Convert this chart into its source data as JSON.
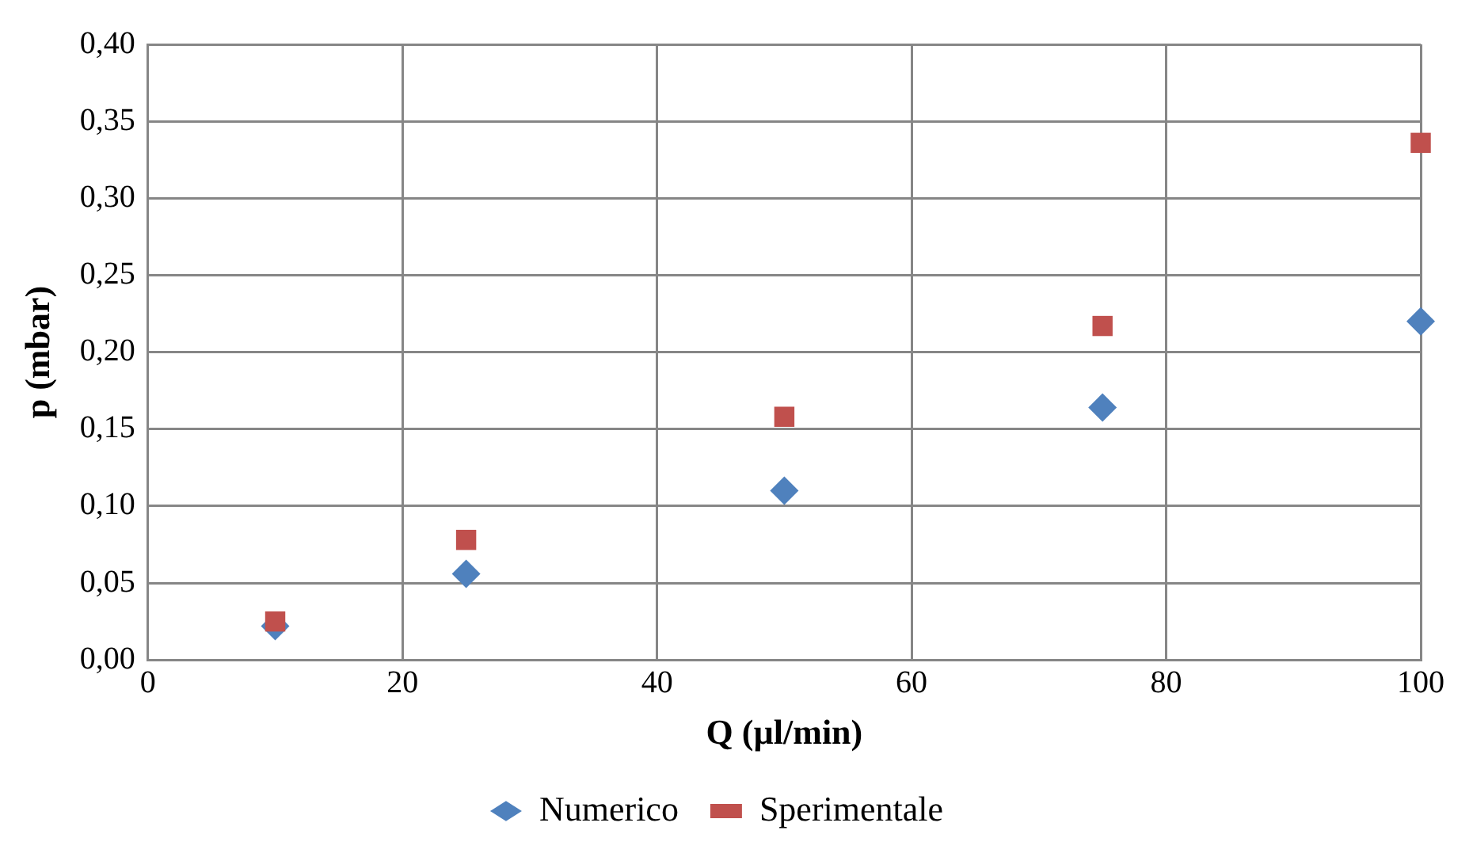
{
  "chart_data": {
    "type": "scatter",
    "xlabel": "Q (µl/min)",
    "ylabel": "p (mbar)",
    "xlim": [
      0,
      100
    ],
    "xticks": [
      0,
      20,
      40,
      60,
      80,
      100
    ],
    "ylim": [
      0,
      0.4
    ],
    "yticks": [
      {
        "value": 0,
        "label": "0,00"
      },
      {
        "value": 0.05,
        "label": "0,05"
      },
      {
        "value": 0.1,
        "label": "0,10"
      },
      {
        "value": 0.15,
        "label": "0,15"
      },
      {
        "value": 0.2,
        "label": "0,20"
      },
      {
        "value": 0.25,
        "label": "0,25"
      },
      {
        "value": 0.3,
        "label": "0,30"
      },
      {
        "value": 0.35,
        "label": "0,35"
      },
      {
        "value": 0.4,
        "label": "0,40"
      }
    ],
    "grid": true,
    "legend": "bottom",
    "x": [
      10,
      25,
      50,
      75,
      100
    ],
    "series": [
      {
        "name": "Numerico",
        "color": "#4f81bd",
        "marker": "diamond",
        "values": [
          0.022,
          0.056,
          0.11,
          0.164,
          0.22
        ]
      },
      {
        "name": "Sperimentale",
        "color": "#c0504d",
        "marker": "square",
        "values": [
          0.025,
          0.078,
          0.158,
          0.217,
          0.336
        ]
      }
    ]
  }
}
